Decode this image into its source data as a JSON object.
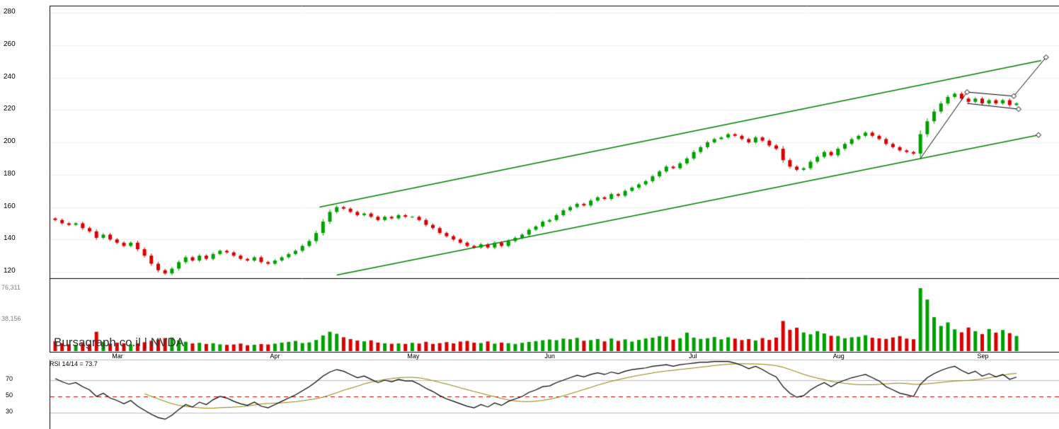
{
  "meta": {
    "watermark": "Bursagraph.co.il | NVDA",
    "site": "Bursagraph.co.il",
    "symbol": "NVDA"
  },
  "rsi_label": "RSI 14/14 = 73.7",
  "colors": {
    "up": "#00A000",
    "down": "#D80000",
    "channel": "#008000",
    "trendline": "#000000",
    "marker_fill": "#FFFFFF",
    "rsi_line": "#000000",
    "rsi_ma": "#8B8000",
    "rsi_midline": "#CC0000",
    "grid": "#EDEDED",
    "panel_border": "#000000",
    "rsi_band_line": "#BBBBBB",
    "axis_text": "#000000",
    "volume_text": "#808080"
  },
  "axes": {
    "price_ticks": [
      280,
      260,
      240,
      220,
      200,
      180,
      160,
      140,
      120
    ],
    "volume_ticks": [
      {
        "label": "76,311",
        "value": 76311
      },
      {
        "label": "38,156",
        "value": 38156
      }
    ],
    "rsi_ticks": [
      70,
      50,
      30
    ],
    "months": [
      {
        "label": "Mar",
        "index": 9
      },
      {
        "label": "Apr",
        "index": 32
      },
      {
        "label": "May",
        "index": 52
      },
      {
        "label": "Jun",
        "index": 72
      },
      {
        "label": "Jul",
        "index": 93
      },
      {
        "label": "Aug",
        "index": 114
      },
      {
        "label": "Sep",
        "index": 135
      }
    ]
  },
  "chart_data": {
    "type": "candlestick",
    "symbol": "NVDA",
    "title": "Bursagraph.co.il | NVDA",
    "panels": [
      "price",
      "volume",
      "rsi"
    ],
    "price_axis_range": [
      116,
      284
    ],
    "volume_axis_max": 76311,
    "close": [
      152,
      150,
      149,
      150,
      147,
      145,
      141,
      143,
      140,
      138,
      136,
      138,
      134,
      130,
      125,
      121,
      119,
      122,
      126,
      129,
      127,
      130,
      128,
      131,
      133,
      132,
      130,
      128,
      127,
      129,
      126,
      125,
      127,
      129,
      131,
      133,
      136,
      139,
      144,
      151,
      157,
      160,
      159,
      157,
      155,
      156,
      154,
      152,
      154,
      153,
      155,
      154,
      154,
      152,
      149,
      147,
      144,
      142,
      140,
      138,
      136,
      135,
      137,
      135,
      138,
      136,
      139,
      141,
      143,
      146,
      148,
      151,
      152,
      155,
      158,
      160,
      162,
      161,
      164,
      166,
      165,
      168,
      167,
      170,
      172,
      174,
      176,
      179,
      182,
      185,
      184,
      187,
      190,
      194,
      197,
      200,
      202,
      203,
      205,
      204,
      202,
      200,
      203,
      201,
      198,
      196,
      189,
      185,
      183,
      184,
      188,
      191,
      194,
      192,
      196,
      199,
      202,
      204,
      206,
      204,
      202,
      199,
      197,
      195,
      194,
      193,
      205,
      213,
      219,
      224,
      228,
      230,
      227,
      225,
      227,
      224,
      226,
      224,
      226,
      223,
      224
    ],
    "volume": [
      12000,
      9500,
      8200,
      7800,
      9600,
      8400,
      23500,
      11200,
      9100,
      10200,
      9600,
      8300,
      9400,
      10800,
      12500,
      14200,
      15800,
      16500,
      13200,
      11400,
      9300,
      10100,
      8700,
      9600,
      8200,
      7600,
      8100,
      9200,
      7200,
      7700,
      8600,
      8100,
      9100,
      10300,
      11200,
      12400,
      9800,
      10600,
      13500,
      19000,
      23500,
      21000,
      16800,
      14600,
      12800,
      11900,
      13100,
      10400,
      9500,
      8900,
      9300,
      8800,
      10100,
      9200,
      11300,
      8800,
      9700,
      10900,
      9400,
      11600,
      12300,
      10200,
      9800,
      11800,
      9100,
      10300,
      9600,
      8700,
      10100,
      11200,
      12100,
      13200,
      14100,
      13300,
      15200,
      14400,
      16100,
      12600,
      13400,
      14700,
      11800,
      15300,
      12400,
      14200,
      11600,
      13600,
      15400,
      16300,
      18200,
      17400,
      13800,
      15600,
      22400,
      16400,
      14800,
      15600,
      17200,
      14300,
      16800,
      15200,
      13400,
      14600,
      12800,
      15800,
      13600,
      16400,
      36500,
      25800,
      28400,
      22600,
      20400,
      24200,
      21400,
      18600,
      18400,
      15600,
      16800,
      17400,
      19200,
      16200,
      15400,
      14800,
      16600,
      18200,
      15200,
      14400,
      76311,
      62500,
      41200,
      30500,
      34800,
      26400,
      22800,
      28600,
      24200,
      20600,
      26800,
      22400,
      25600,
      21800,
      18400
    ],
    "rsi": {
      "period": 14,
      "current": 73.7,
      "overbought": 70,
      "midline": 50,
      "oversold": 30,
      "values": [
        72,
        68,
        65,
        67,
        62,
        58,
        50,
        54,
        48,
        45,
        41,
        45,
        38,
        33,
        28,
        24,
        22,
        27,
        34,
        40,
        37,
        43,
        40,
        46,
        50,
        48,
        44,
        41,
        39,
        43,
        38,
        36,
        40,
        44,
        48,
        52,
        57,
        62,
        68,
        75,
        80,
        83,
        81,
        77,
        73,
        75,
        71,
        67,
        70,
        68,
        71,
        69,
        69,
        65,
        60,
        56,
        51,
        47,
        44,
        41,
        38,
        36,
        40,
        37,
        42,
        39,
        44,
        47,
        50,
        55,
        58,
        62,
        63,
        67,
        70,
        73,
        76,
        74,
        77,
        79,
        77,
        80,
        78,
        81,
        83,
        84,
        85,
        87,
        88,
        89,
        87,
        89,
        90,
        91,
        92,
        92,
        93,
        93,
        93,
        91,
        88,
        84,
        87,
        83,
        78,
        74,
        62,
        54,
        49,
        51,
        58,
        63,
        67,
        62,
        67,
        70,
        73,
        75,
        77,
        73,
        69,
        62,
        58,
        54,
        52,
        50,
        65,
        73,
        78,
        82,
        85,
        87,
        82,
        78,
        81,
        75,
        78,
        74,
        77,
        71,
        73.7
      ]
    },
    "channel": {
      "lower": {
        "i1": 41,
        "p1": 118,
        "i2": 143.2,
        "p2": 204.5
      },
      "upper": {
        "i1": 38.5,
        "p1": 160,
        "i2": 143.6,
        "p2": 250.5
      }
    },
    "trendlines": [
      {
        "pts": [
          [
            126,
            190
          ],
          [
            132.8,
            231
          ]
        ]
      },
      {
        "pts": [
          [
            132.8,
            231
          ],
          [
            139.6,
            228.5
          ]
        ]
      },
      {
        "pts": [
          [
            132.8,
            224
          ],
          [
            140.3,
            220.5
          ]
        ]
      },
      {
        "pts": [
          [
            139.6,
            228.5
          ],
          [
            144.3,
            252.5
          ]
        ]
      }
    ],
    "markers": [
      [
        132.8,
        231
      ],
      [
        139.6,
        228.5
      ],
      [
        140.3,
        220.5
      ],
      [
        144.3,
        252.5
      ],
      [
        143.2,
        204.5
      ]
    ]
  }
}
